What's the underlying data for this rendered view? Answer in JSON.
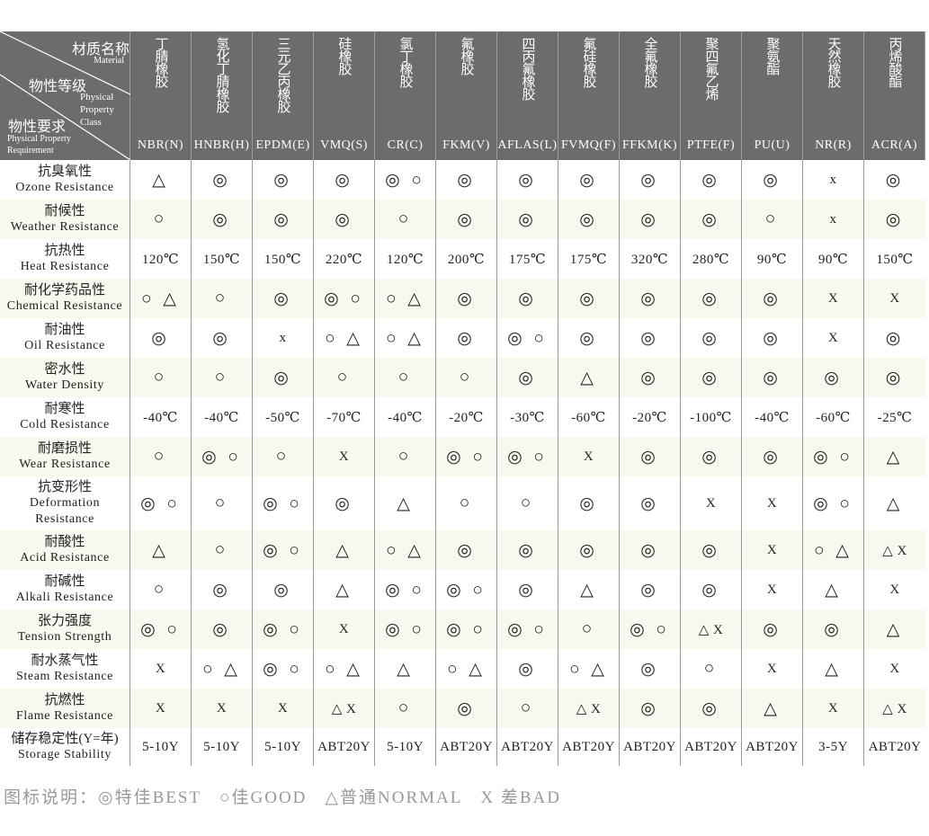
{
  "corner": {
    "material_zh": "材质名称",
    "material_en": "Material",
    "class_zh": "物性等级",
    "class_en": [
      "Physical",
      "Property",
      "Class"
    ],
    "req_zh": "物性要求",
    "req_en": [
      "Physical Property",
      "Requirement"
    ]
  },
  "materials": [
    {
      "zh": "丁腈橡胶",
      "code": "NBR(N)"
    },
    {
      "zh": "氢化丁腈橡胶",
      "code": "HNBR(H)"
    },
    {
      "zh": "三元乙丙橡胶",
      "code": "EPDM(E)"
    },
    {
      "zh": "硅橡胶",
      "code": "VMQ(S)"
    },
    {
      "zh": "氯丁橡胶",
      "code": "CR(C)"
    },
    {
      "zh": "氟橡胶",
      "code": "FKM(V)"
    },
    {
      "zh": "四丙氟橡胶",
      "code": "AFLAS(L)"
    },
    {
      "zh": "氟硅橡胶",
      "code": "FVMQ(F)"
    },
    {
      "zh": "全氟橡胶",
      "code": "FFKM(K)"
    },
    {
      "zh": "聚四氟乙烯",
      "code": "PTFE(F)"
    },
    {
      "zh": "聚氨酯",
      "code": "PU(U)"
    },
    {
      "zh": "天然橡胶",
      "code": "NR(R)"
    },
    {
      "zh": "丙烯酸酯",
      "code": "ACR(A)"
    }
  ],
  "rows": [
    {
      "zh": "抗臭氧性",
      "en": [
        "Ozone Resistance"
      ],
      "values": [
        "△",
        "◎",
        "◎",
        "◎",
        "◎ ○",
        "◎",
        "◎",
        "◎",
        "◎",
        "◎",
        "◎",
        "x",
        "◎"
      ]
    },
    {
      "zh": "耐候性",
      "en": [
        "Weather Resistance"
      ],
      "values": [
        "○",
        "◎",
        "◎",
        "◎",
        "○",
        "◎",
        "◎",
        "◎",
        "◎",
        "◎",
        "○",
        "x",
        "◎"
      ]
    },
    {
      "zh": "抗热性",
      "en": [
        "Heat Resistance"
      ],
      "values": [
        "120℃",
        "150℃",
        "150℃",
        "220℃",
        "120℃",
        "200℃",
        "175℃",
        "175℃",
        "320℃",
        "280℃",
        "90℃",
        "90℃",
        "150℃"
      ]
    },
    {
      "zh": "耐化学药品性",
      "en": [
        "Chemical Resistance"
      ],
      "values": [
        "○ △",
        "○",
        "◎",
        "◎ ○",
        "○ △",
        "◎",
        "◎",
        "◎",
        "◎",
        "◎",
        "◎",
        "X",
        "X"
      ]
    },
    {
      "zh": "耐油性",
      "en": [
        "Oil Resistance"
      ],
      "values": [
        "◎",
        "◎",
        "x",
        "○ △",
        "○ △",
        "◎",
        "◎ ○",
        "◎",
        "◎",
        "◎",
        "◎",
        "X",
        "◎"
      ]
    },
    {
      "zh": "密水性",
      "en": [
        "Water Density"
      ],
      "values": [
        "○",
        "○",
        "◎",
        "○",
        "○",
        "○",
        "◎",
        "△",
        "◎",
        "◎",
        "◎",
        "◎",
        "◎"
      ]
    },
    {
      "zh": "耐寒性",
      "en": [
        "Cold Resistance"
      ],
      "values": [
        "-40℃",
        "-40℃",
        "-50℃",
        "-70℃",
        "-40℃",
        "-20℃",
        "-30℃",
        "-60℃",
        "-20℃",
        "-100℃",
        "-40℃",
        "-60℃",
        "-25℃"
      ]
    },
    {
      "zh": "耐磨损性",
      "en": [
        "Wear Resistance"
      ],
      "values": [
        "○",
        "◎ ○",
        "○",
        "X",
        "○",
        "◎ ○",
        "◎ ○",
        "X",
        "◎",
        "◎",
        "◎",
        "◎ ○",
        "△"
      ]
    },
    {
      "zh": "抗变形性",
      "en": [
        "Deformation",
        "Resistance"
      ],
      "values": [
        "◎ ○",
        "○",
        "◎ ○",
        "◎",
        "△",
        "○",
        "○",
        "◎",
        "◎",
        "X",
        "X",
        "◎ ○",
        "△"
      ]
    },
    {
      "zh": "耐酸性",
      "en": [
        "Acid Resistance"
      ],
      "values": [
        "△",
        "○",
        "◎ ○",
        "△",
        "○ △",
        "◎",
        "◎",
        "◎",
        "◎",
        "◎",
        "X",
        "○ △",
        "△ X"
      ]
    },
    {
      "zh": "耐碱性",
      "en": [
        "Alkali Resistance"
      ],
      "values": [
        "○",
        "◎",
        "◎",
        "△",
        "◎ ○",
        "◎ ○",
        "◎",
        "△",
        "◎",
        "◎",
        "X",
        "△",
        "X"
      ]
    },
    {
      "zh": "张力强度",
      "en": [
        "Tension Strength"
      ],
      "values": [
        "◎ ○",
        "◎",
        "◎ ○",
        "X",
        "◎ ○",
        "◎ ○",
        "◎ ○",
        "○",
        "◎ ○",
        "△ X",
        "◎",
        "◎",
        "△"
      ]
    },
    {
      "zh": "耐水蒸气性",
      "en": [
        "Steam Resistance"
      ],
      "values": [
        "X",
        "○ △",
        "◎ ○",
        "○ △",
        "△",
        "○ △",
        "◎",
        "○ △",
        "◎",
        "○",
        "X",
        "△",
        "X"
      ]
    },
    {
      "zh": "抗燃性",
      "en": [
        "Flame Resistance"
      ],
      "values": [
        "X",
        "X",
        "X",
        "△ X",
        "○",
        "◎",
        "○",
        "△ X",
        "◎",
        "◎",
        "△",
        "X",
        "△ X"
      ]
    },
    {
      "zh": "储存稳定性(Y=年)",
      "en": [
        "Storage Stability"
      ],
      "values": [
        "5-10Y",
        "5-10Y",
        "5-10Y",
        "ABT20Y",
        "5-10Y",
        "ABT20Y",
        "ABT20Y",
        "ABT20Y",
        "ABT20Y",
        "ABT20Y",
        "ABT20Y",
        "3-5Y",
        "ABT20Y"
      ]
    }
  ],
  "legend": {
    "title": "图标说明：",
    "items": [
      "◎特佳BEST",
      "○佳GOOD",
      "△普通NORMAL",
      "X 差BAD"
    ]
  },
  "colors": {
    "header_bg": "#6d6b6b",
    "alt_row_bg": "#f5f9ee",
    "grid": "#999999"
  }
}
